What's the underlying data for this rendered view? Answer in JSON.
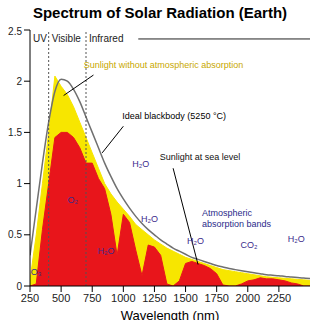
{
  "chart_data": {
    "type": "area",
    "title": "Spectrum of Solar Radiation (Earth)",
    "xlabel": "Wavelength (nm)",
    "x": [
      250,
      300,
      350,
      400,
      450,
      500,
      550,
      600,
      650,
      700,
      750,
      800,
      850,
      900,
      950,
      1000,
      1050,
      1100,
      1150,
      1200,
      1250,
      1300,
      1350,
      1400,
      1450,
      1500,
      1550,
      1600,
      1650,
      1700,
      1750,
      1800,
      1850,
      1900,
      1950,
      2000,
      2050,
      2100,
      2150,
      2200,
      2250,
      2300,
      2350,
      2400,
      2450,
      2500
    ],
    "series": [
      {
        "name": "Sunlight without atmospheric absorption",
        "type": "area",
        "color": "#f7e600",
        "values": [
          0.06,
          0.5,
          1.0,
          1.5,
          2.05,
          1.95,
          1.87,
          1.75,
          1.6,
          1.45,
          1.3,
          1.15,
          1.0,
          0.9,
          0.82,
          0.75,
          0.68,
          0.6,
          0.55,
          0.5,
          0.45,
          0.41,
          0.37,
          0.34,
          0.31,
          0.28,
          0.26,
          0.24,
          0.22,
          0.2,
          0.18,
          0.16,
          0.15,
          0.14,
          0.13,
          0.12,
          0.11,
          0.1,
          0.09,
          0.085,
          0.08,
          0.075,
          0.07,
          0.065,
          0.06,
          0.055
        ]
      },
      {
        "name": "Sunlight at sea level",
        "type": "area",
        "color": "#e8151b",
        "values": [
          0,
          0.02,
          0.55,
          1.0,
          1.45,
          1.5,
          1.5,
          1.45,
          1.35,
          1.2,
          1.2,
          1.05,
          0.95,
          0.7,
          0.3,
          0.7,
          0.62,
          0.35,
          0.1,
          0.4,
          0.38,
          0.3,
          0.02,
          0,
          0.05,
          0.22,
          0.24,
          0.22,
          0.2,
          0.17,
          0.12,
          0.01,
          0,
          0,
          0.02,
          0.05,
          0.06,
          0.08,
          0.07,
          0.07,
          0.06,
          0.05,
          0.03,
          0.02,
          0,
          0
        ]
      },
      {
        "name": "Ideal blackbody (5250 °C)",
        "type": "line",
        "color": "#707070",
        "values": [
          0.3,
          0.75,
          1.2,
          1.6,
          1.9,
          2.02,
          2.0,
          1.92,
          1.8,
          1.65,
          1.5,
          1.35,
          1.2,
          1.07,
          0.95,
          0.85,
          0.76,
          0.68,
          0.61,
          0.55,
          0.5,
          0.45,
          0.41,
          0.37,
          0.34,
          0.31,
          0.28,
          0.26,
          0.24,
          0.22,
          0.2,
          0.185,
          0.17,
          0.16,
          0.15,
          0.14,
          0.13,
          0.12,
          0.11,
          0.105,
          0.1,
          0.093,
          0.088,
          0.082,
          0.077,
          0.072
        ]
      }
    ],
    "xlim": [
      250,
      2500
    ],
    "xticks": [
      250,
      500,
      750,
      1000,
      1250,
      1500,
      1750,
      2000,
      2250
    ],
    "ylim": [
      0,
      2.5
    ],
    "yticks": [
      0,
      0.5,
      1,
      1.5,
      2,
      2.5
    ],
    "grid": false,
    "legend": "none",
    "regions": [
      {
        "label": "UV",
        "start": 250,
        "end": 400
      },
      {
        "label": "Visible",
        "start": 400,
        "end": 700
      },
      {
        "label": "Infrared",
        "start": 700,
        "end": 2500
      }
    ],
    "note": "Atmospheric absorption bands",
    "annotations": [
      "O₃",
      "O₂",
      "H₂O",
      "H₂O",
      "H₂O",
      "H₂O",
      "CO₂",
      "H₂O"
    ]
  }
}
